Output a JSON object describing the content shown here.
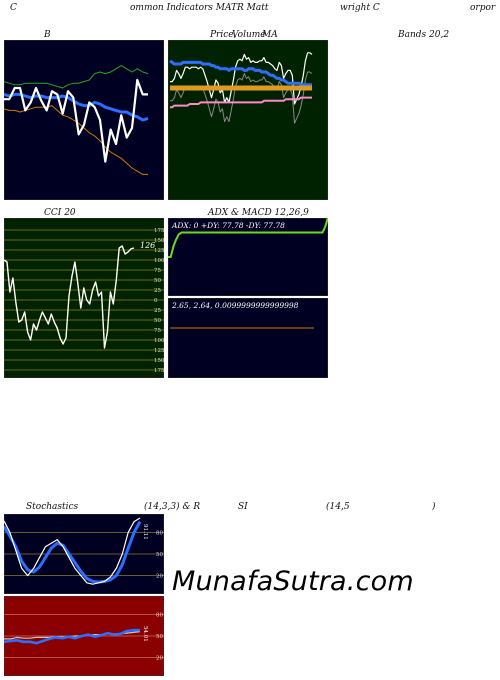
{
  "header": {
    "left": "C",
    "mid": "ommon  Indicators MATR Matt",
    "right1": "wright C",
    "right2": "orpor"
  },
  "titles": {
    "bollinger": "B",
    "price": "Price,",
    "volume": "Volume",
    "ma": "MA",
    "bands": "Bands 20,2",
    "cci": "CCI 20",
    "adx_macd": "ADX  & MACD 12,26,9",
    "stoch": "Stochastics",
    "stoch_params": "(14,3,3) & R",
    "rsi": "SI",
    "rsi_params": "(14,5",
    "rsi_close": ")"
  },
  "watermark": "MunafaSutra.com",
  "colors": {
    "dark_panel": "#000022",
    "ma_panel": "#002200",
    "rsi_panel": "#8b0000",
    "green": "#22aa22",
    "blue": "#2a6fff",
    "orange": "#d07a00",
    "white": "#ffffff"
  },
  "chart_data": [
    {
      "id": "bollinger",
      "type": "line",
      "title": "B",
      "series": [
        {
          "color": "#22aa22",
          "values": [
            74,
            73,
            72,
            72,
            73,
            73,
            73,
            73,
            73,
            72,
            71,
            70,
            72,
            73,
            73,
            74,
            75,
            79,
            80,
            79,
            80,
            82,
            84,
            82,
            80,
            82,
            80,
            79
          ]
        },
        {
          "color": "#d07a00",
          "values": [
            57,
            56,
            56,
            55,
            56,
            57,
            58,
            58,
            58,
            59,
            56,
            53,
            52,
            50,
            48,
            45,
            42,
            40,
            37,
            33,
            30,
            28,
            26,
            23,
            20,
            18,
            16,
            16
          ]
        },
        {
          "color": "#2a6fff",
          "values": [
            66,
            65,
            66,
            66,
            65,
            64,
            65,
            65,
            64,
            64,
            64,
            65,
            64,
            62,
            60,
            59,
            59,
            61,
            60,
            58,
            57,
            56,
            55,
            55,
            53,
            52,
            50,
            51
          ]
        },
        {
          "color": "#ffffff",
          "values": [
            63,
            63,
            70,
            70,
            56,
            61,
            70,
            62,
            56,
            68,
            66,
            54,
            68,
            64,
            41,
            47,
            61,
            58,
            50,
            24,
            44,
            35,
            53,
            39,
            45,
            75,
            66,
            66
          ]
        }
      ]
    },
    {
      "id": "price_ma",
      "type": "line",
      "title": "Price, Volume MA",
      "series": [
        {
          "color": "#ffffff",
          "values": [
            74,
            74,
            76,
            81,
            79,
            76,
            79,
            83,
            83,
            82,
            83,
            83,
            83,
            82,
            83,
            82,
            78,
            74,
            69,
            64,
            69,
            75,
            73,
            67,
            69,
            61,
            64,
            61,
            68,
            75,
            83,
            87,
            88,
            87,
            91,
            88,
            89,
            86,
            87,
            86,
            86,
            87,
            87,
            89,
            86,
            86,
            85,
            84,
            82,
            81,
            86,
            84,
            76,
            79,
            81,
            81,
            78,
            60,
            63,
            66,
            71,
            78,
            87,
            92,
            92,
            91
          ]
        },
        {
          "color": "#2a6fff",
          "values": [
            87,
            86,
            85,
            85,
            85,
            85,
            86,
            86,
            86,
            86,
            86,
            86,
            86,
            86,
            86,
            85,
            85,
            85,
            85,
            84,
            84,
            83,
            83,
            82,
            82,
            82,
            82,
            81,
            82,
            82,
            82,
            82,
            82,
            82,
            81,
            81,
            82,
            82,
            82,
            81,
            81,
            81,
            80,
            80,
            80,
            79,
            78,
            78,
            77,
            76,
            76,
            75,
            75,
            74,
            73,
            73,
            73,
            73,
            73,
            73,
            72,
            72,
            72,
            72,
            72,
            72
          ]
        },
        {
          "color": "#e09a20",
          "values": [
            70,
            70,
            70,
            70,
            70,
            70,
            70,
            70,
            70,
            70,
            70,
            70,
            70,
            70,
            70,
            70,
            70,
            70,
            70,
            70,
            70,
            70,
            70,
            70,
            70,
            70,
            70,
            70,
            70,
            70,
            70,
            70,
            70,
            70,
            70,
            70,
            70,
            70,
            70,
            70,
            70,
            70,
            70,
            70,
            70,
            70,
            70,
            70,
            70,
            70,
            70,
            70,
            70,
            70,
            70,
            70,
            70,
            70,
            70,
            70,
            70,
            70,
            70,
            70,
            70,
            70
          ]
        },
        {
          "color": "#ff88cc",
          "values": [
            58,
            58,
            59,
            59,
            59,
            59,
            59,
            59,
            59,
            60,
            60,
            60,
            60,
            60,
            61,
            61,
            61,
            61,
            61,
            61,
            61,
            61,
            61,
            61,
            61,
            61,
            61,
            61,
            61,
            61,
            61,
            61,
            61,
            61,
            61,
            61,
            61,
            61,
            61,
            61,
            61,
            61,
            61,
            62,
            62,
            62,
            62,
            62,
            62,
            62,
            62,
            62,
            62,
            63,
            63,
            63,
            63,
            63,
            63,
            63,
            64,
            64,
            64,
            64,
            64,
            64
          ]
        }
      ]
    },
    {
      "id": "cci",
      "type": "line",
      "title": "CCI 20",
      "last_value_label": "126",
      "ylim": [
        -175,
        175
      ],
      "tick_labels": [
        "175",
        "150",
        "125",
        "100",
        "75",
        "50",
        "25",
        "0",
        "25",
        "50",
        "75",
        "100",
        "125",
        "150",
        "175"
      ],
      "values": [
        100,
        95,
        20,
        55,
        -5,
        -55,
        -50,
        -30,
        -80,
        -100,
        -60,
        -75,
        -50,
        -30,
        -45,
        -60,
        -35,
        -55,
        -70,
        -95,
        -110,
        -95,
        10,
        60,
        95,
        40,
        -20,
        30,
        0,
        -10,
        25,
        45,
        10,
        20,
        -120,
        -80,
        20,
        -10,
        50,
        130,
        135,
        115,
        120,
        128,
        130
      ]
    },
    {
      "id": "adx",
      "type": "line",
      "title": "ADX: 0  +DY: 77.78  -DY: 77.78",
      "values": [
        0,
        0,
        12,
        20,
        26,
        28,
        28,
        28,
        28,
        28,
        28,
        28,
        28,
        28,
        28,
        28,
        28,
        28,
        28,
        28,
        28,
        28,
        28,
        28,
        28,
        28,
        28,
        28,
        28,
        28,
        28,
        28,
        28,
        28,
        28,
        28,
        28,
        28,
        28,
        28,
        28,
        28,
        28,
        28,
        28,
        28,
        28,
        28,
        28,
        28,
        28,
        28,
        28,
        28,
        28,
        28,
        28,
        28,
        35,
        45
      ]
    },
    {
      "id": "macd",
      "type": "line",
      "title": "2.65,  2.64,  0.0099999999999998",
      "series": [
        {
          "color": "#ffffff",
          "values": [
            0,
            0,
            0,
            0,
            0,
            0,
            0,
            0,
            0,
            0,
            0,
            0,
            0,
            0,
            0,
            0,
            0,
            0,
            0,
            0,
            0,
            0,
            0,
            0,
            0,
            0,
            0,
            0,
            0,
            0
          ]
        },
        {
          "color": "#d07a00",
          "values": [
            0,
            0,
            0,
            0,
            0,
            0,
            0,
            0,
            0,
            0,
            0,
            0,
            0,
            0,
            0,
            0,
            0,
            0,
            0,
            0,
            0,
            0,
            0,
            0,
            0,
            0,
            0,
            0,
            0,
            0
          ]
        }
      ]
    },
    {
      "id": "stochastics",
      "type": "line",
      "title": "Stochastics (14,3,3)",
      "last_value_label": "91.11",
      "ylim": [
        0,
        100
      ],
      "tick_labels": [
        "80",
        "50",
        "20"
      ],
      "series": [
        {
          "color": "#ffffff",
          "values": [
            96,
            80,
            55,
            30,
            20,
            30,
            45,
            60,
            65,
            70,
            60,
            45,
            30,
            20,
            10,
            8,
            10,
            12,
            18,
            30,
            50,
            80,
            95,
            100
          ]
        },
        {
          "color": "#2a6fff",
          "values": [
            88,
            75,
            60,
            40,
            28,
            25,
            32,
            45,
            58,
            65,
            62,
            50,
            38,
            26,
            16,
            12,
            11,
            12,
            14,
            20,
            35,
            58,
            80,
            95
          ]
        }
      ]
    },
    {
      "id": "rsi",
      "type": "line",
      "title": "RSI (14,5)",
      "last_value_label": "54.01",
      "ylim": [
        0,
        100
      ],
      "tick_labels": [
        "80",
        "50",
        "20"
      ],
      "series": [
        {
          "color": "#c8c8c8",
          "values": [
            46,
            46,
            48,
            47,
            47,
            48,
            48,
            48,
            49,
            49,
            49,
            50,
            50,
            51,
            52,
            52,
            53,
            53,
            53,
            54,
            55,
            56
          ]
        },
        {
          "color": "#2a6fff",
          "values": [
            42,
            43,
            44,
            42,
            42,
            40,
            43,
            46,
            48,
            47,
            49,
            47,
            50,
            52,
            49,
            51,
            54,
            52,
            53,
            57,
            58,
            58
          ]
        }
      ]
    }
  ]
}
